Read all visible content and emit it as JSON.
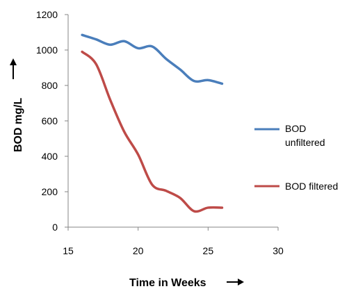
{
  "chart_data": {
    "type": "line",
    "title": "",
    "xlabel": "Time in Weeks",
    "ylabel": "BOD mg/L",
    "xlim": [
      15,
      30
    ],
    "ylim": [
      0,
      1200
    ],
    "x_ticks": [
      "15",
      "20",
      "25",
      "30"
    ],
    "y_ticks": [
      "0",
      "200",
      "400",
      "600",
      "800",
      "1000",
      "1200"
    ],
    "grid": false,
    "legend_position": "right",
    "series": [
      {
        "name_lines": [
          "BOD",
          "unfiltered"
        ],
        "color": "#4a7ebb",
        "x": [
          16,
          17,
          18,
          19,
          20,
          21,
          22,
          23,
          24,
          25,
          26
        ],
        "y": [
          1085,
          1060,
          1030,
          1050,
          1010,
          1020,
          950,
          890,
          825,
          830,
          810
        ]
      },
      {
        "name_lines": [
          "BOD filtered"
        ],
        "color": "#be4b48",
        "x": [
          16,
          17,
          18,
          19,
          20,
          21,
          22,
          23,
          24,
          25,
          26
        ],
        "y": [
          990,
          920,
          720,
          540,
          410,
          240,
          205,
          165,
          90,
          110,
          110
        ]
      }
    ]
  }
}
